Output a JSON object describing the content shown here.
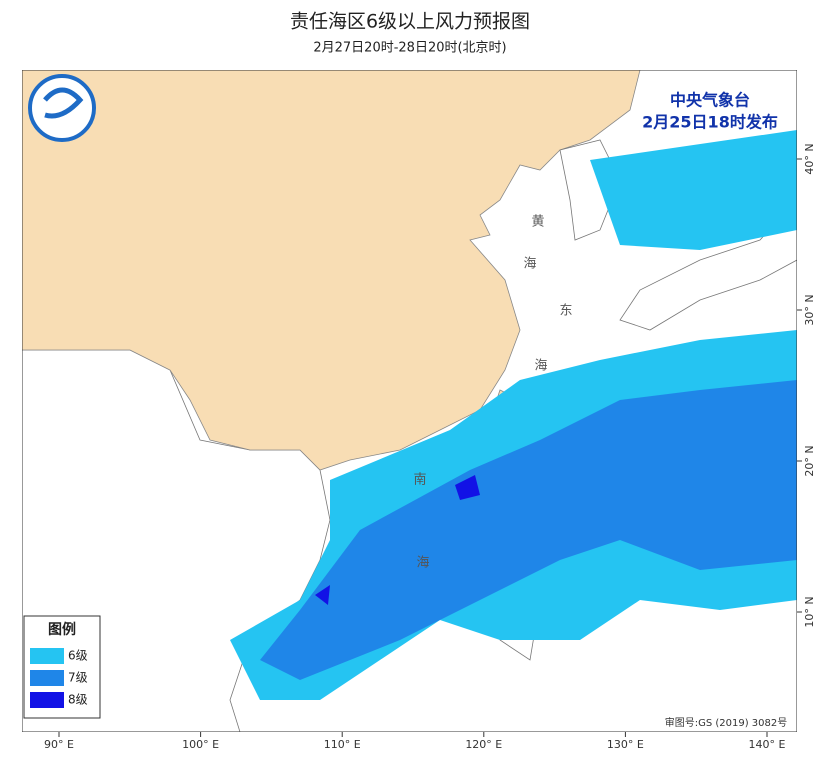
{
  "header": {
    "title": "责任海区6级以上风力预报图",
    "subtitle": "2月27日20时-28日20时(北京时)"
  },
  "issuer": {
    "agency": "中央气象台",
    "issue_time": "2月25日18时发布"
  },
  "legend": {
    "title": "图例",
    "items": [
      {
        "label": "6级",
        "color": "#25c4f2"
      },
      {
        "label": "7级",
        "color": "#1f86e8"
      },
      {
        "label": "8级",
        "color": "#1212e6"
      }
    ]
  },
  "map": {
    "sea_labels": [
      {
        "text": "黄"
      },
      {
        "text": "海"
      },
      {
        "text": "东"
      },
      {
        "text": "海"
      },
      {
        "text": "南"
      },
      {
        "text": "海"
      }
    ],
    "longitude_labels": [
      "90° E",
      "100° E",
      "110° E",
      "120° E",
      "130° E",
      "140° E"
    ],
    "latitude_labels": [
      "10° N",
      "20° N",
      "30° N",
      "40° N"
    ],
    "approval": "审图号:GS (2019) 3082号"
  }
}
